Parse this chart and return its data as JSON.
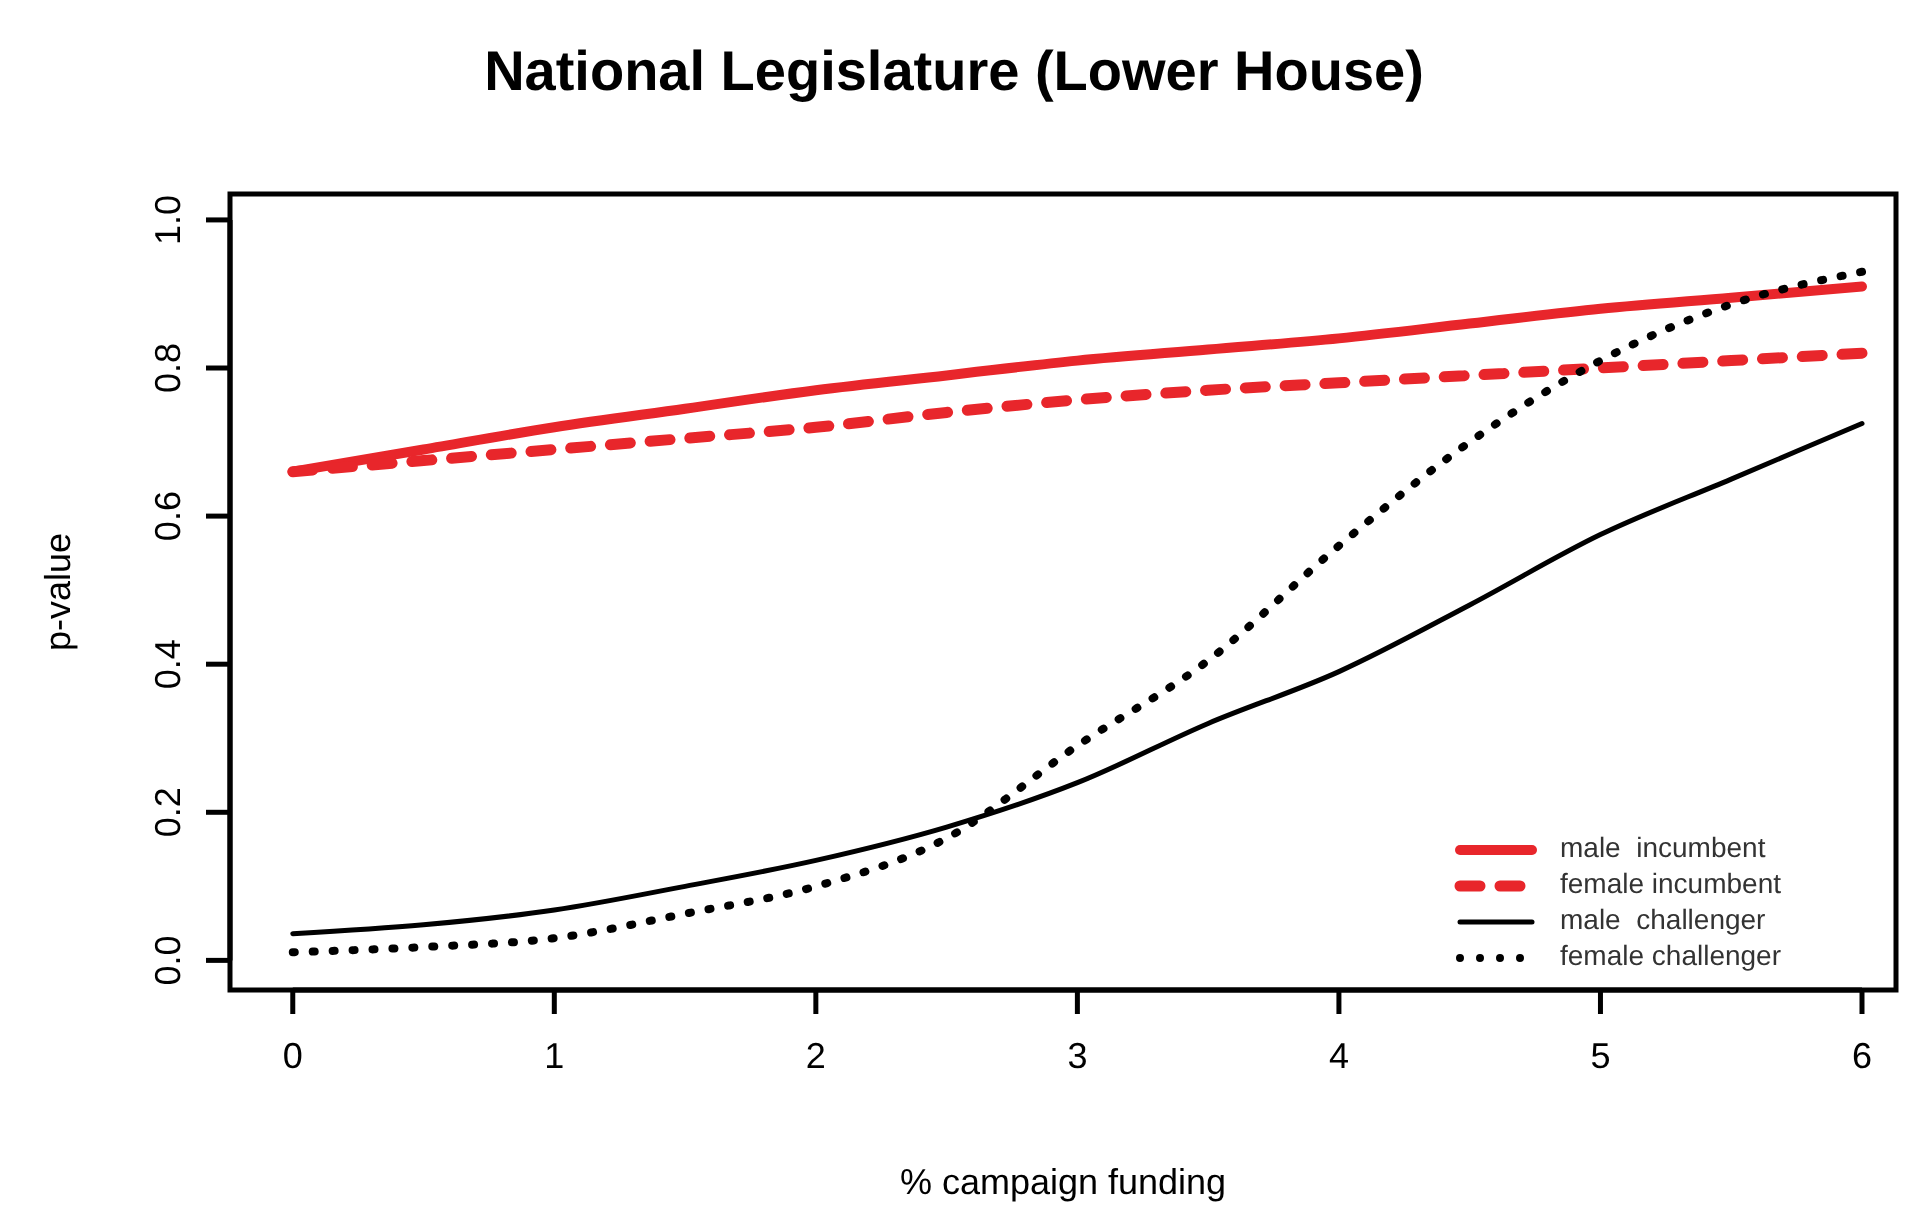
{
  "chart_data": {
    "type": "line",
    "title": "National Legislature (Lower House)",
    "xlabel": "% campaign funding",
    "ylabel": "p-value",
    "x": [
      0,
      0.5,
      1,
      1.5,
      2,
      2.5,
      3,
      3.5,
      4,
      4.5,
      5,
      5.5,
      6
    ],
    "xlim": [
      -0.24,
      6.13
    ],
    "ylim": [
      -0.04,
      1.035
    ],
    "xticks": [
      0,
      1,
      2,
      3,
      4,
      5,
      6
    ],
    "yticks": [
      {
        "value": 0,
        "label": "0.0"
      },
      0.2,
      0.4,
      0.6,
      0.8,
      {
        "value": 1,
        "label": "1.0"
      }
    ],
    "grid": false,
    "legend": "bottom right",
    "marker": "none",
    "series": [
      {
        "name": "male  incumbent",
        "color": "#e8262b",
        "line_style": "solid",
        "values": [
          0.66,
          0.69,
          0.72,
          0.745,
          0.77,
          0.79,
          0.81,
          0.825,
          0.84,
          0.86,
          0.88,
          0.895,
          0.91
        ]
      },
      {
        "name": "female incumbent",
        "color": "#e8262b",
        "line_style": "dashed",
        "values": [
          0.66,
          0.675,
          0.69,
          0.705,
          0.72,
          0.74,
          0.757,
          0.77,
          0.78,
          0.79,
          0.8,
          0.81,
          0.82
        ]
      },
      {
        "name": "male  challenger",
        "color": "#000000",
        "line_style": "solid",
        "values": [
          0.036,
          0.048,
          0.068,
          0.1,
          0.135,
          0.18,
          0.24,
          0.32,
          0.39,
          0.48,
          0.575,
          0.65,
          0.725
        ]
      },
      {
        "name": "female challenger",
        "color": "#000000",
        "line_style": "dotted",
        "values": [
          0.011,
          0.018,
          0.03,
          0.063,
          0.1,
          0.165,
          0.29,
          0.405,
          0.56,
          0.7,
          0.81,
          0.886,
          0.93
        ]
      }
    ]
  }
}
